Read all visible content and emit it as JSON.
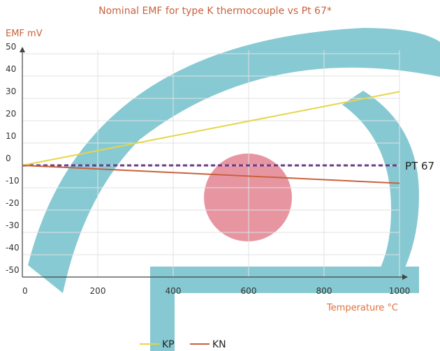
{
  "chart_data": {
    "type": "line",
    "title": "Nominal EMF for type K thermocouple vs Pt 67*",
    "y_label": "EMF mV",
    "x_label": "Temperature °C",
    "x": [
      0,
      1000
    ],
    "series": [
      {
        "name": "KP",
        "color": "#e6d548",
        "values": [
          0,
          33
        ]
      },
      {
        "name": "KN",
        "color": "#c9613d",
        "values": [
          0,
          -8
        ]
      }
    ],
    "reference_line": {
      "label": "PT 67",
      "value": 0,
      "color": "#6b3a8c"
    },
    "xlim": [
      0,
      1000
    ],
    "xticks": [
      0,
      200,
      400,
      600,
      800,
      1000
    ],
    "ylim": [
      -50,
      50
    ],
    "yticks": [
      50,
      40,
      30,
      20,
      10,
      0,
      -10,
      -20,
      -30,
      -40,
      -50
    ],
    "grid": true
  }
}
